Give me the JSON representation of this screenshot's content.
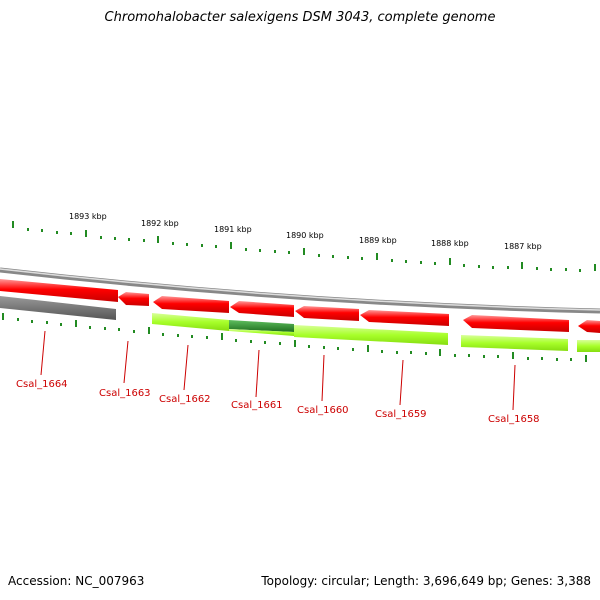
{
  "title": "Chromohalobacter salexigens DSM 3043, complete genome",
  "footer": {
    "accession": "Accession: NC_007963",
    "summary": "Topology: circular; Length: 3,696,649 bp; Genes: 3,388"
  },
  "colors": {
    "cds": "#ff0000",
    "gene": "#a8ff2a",
    "gene_dark": "#2e8b2e",
    "pseudo": "#666666",
    "backbone": "#999999",
    "ticks": "#228b22",
    "label": "#cc0000"
  },
  "scale_labels": [
    "1893 kbp",
    "1892 kbp",
    "1891 kbp",
    "1890 kbp",
    "1889 kbp",
    "1888 kbp",
    "1887 kbp"
  ],
  "gene_labels": [
    "Csal_1664",
    "Csal_1663",
    "Csal_1662",
    "Csal_1661",
    "Csal_1660",
    "Csal_1659",
    "Csal_1658"
  ]
}
